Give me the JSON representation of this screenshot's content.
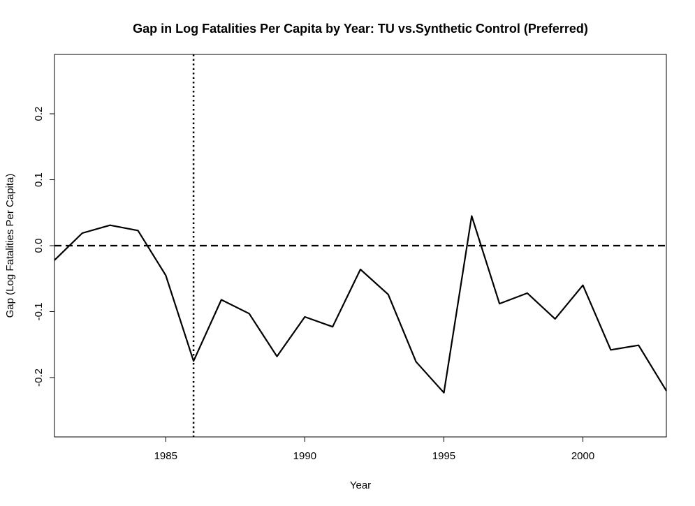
{
  "chart_data": {
    "type": "line",
    "title": "Gap in Log Fatalities Per Capita by Year: TU vs.Synthetic Control (Preferred)",
    "xlabel": "Year",
    "ylabel": "Gap (Log Fatalities Per Capita)",
    "xlim": [
      1981,
      2003
    ],
    "ylim": [
      -0.29,
      0.29
    ],
    "x_ticks": [
      1985,
      1990,
      1995,
      2000
    ],
    "y_ticks": [
      -0.2,
      -0.1,
      0.0,
      0.1,
      0.2
    ],
    "y_tick_labels": [
      "-0.2",
      "-0.1",
      "0.0",
      "0.1",
      "0.2"
    ],
    "grid": false,
    "reference_lines": [
      {
        "orientation": "horizontal",
        "value": 0.0,
        "style": "dashed"
      },
      {
        "orientation": "vertical",
        "value": 1986,
        "style": "dotted"
      }
    ],
    "series": [
      {
        "color": "#000000",
        "x": [
          1981,
          1982,
          1983,
          1984,
          1985,
          1986,
          1987,
          1988,
          1989,
          1990,
          1991,
          1992,
          1993,
          1994,
          1995,
          1996,
          1997,
          1998,
          1999,
          2000,
          2001,
          2002,
          2003
        ],
        "y": [
          -0.022,
          0.019,
          0.031,
          0.023,
          -0.045,
          -0.175,
          -0.082,
          -0.103,
          -0.168,
          -0.108,
          -0.123,
          -0.036,
          -0.074,
          -0.176,
          -0.223,
          0.045,
          -0.088,
          -0.072,
          -0.111,
          -0.06,
          -0.158,
          -0.151,
          -0.22
        ]
      }
    ]
  }
}
